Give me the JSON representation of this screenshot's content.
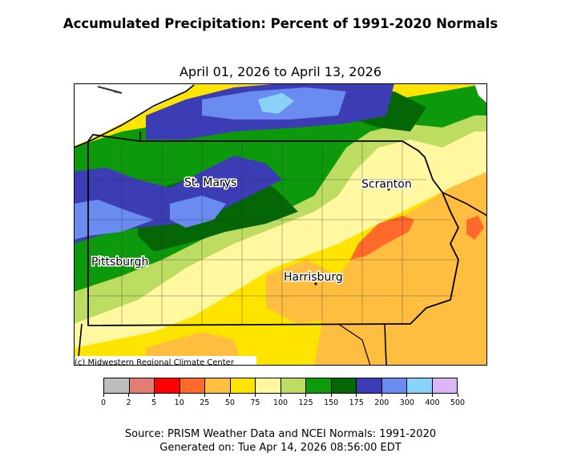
{
  "title": "Accumulated Precipitation: Percent of 1991-2020 Normals",
  "subtitle": "April 01, 2026 to April 13, 2026",
  "credit": "(c) Midwestern Regional Climate Center",
  "cities": [
    {
      "name": "St. Marys"
    },
    {
      "name": "Scranton"
    },
    {
      "name": "Pittsburgh"
    },
    {
      "name": "Harrisburg"
    }
  ],
  "legend": {
    "bins": [
      "0",
      "2",
      "5",
      "10",
      "25",
      "50",
      "75",
      "100",
      "125",
      "150",
      "175",
      "200",
      "300",
      "400",
      "500"
    ],
    "colors": [
      "#bdbdbd",
      "#e37d73",
      "#ff0000",
      "#ff6a2a",
      "#ffbe40",
      "#ffe400",
      "#fff8a0",
      "#bcdc62",
      "#0c9a0c",
      "#046604",
      "#3c3cb4",
      "#6a8cf0",
      "#8ad2fa",
      "#dcb4f8"
    ]
  },
  "footer": {
    "source": "Source: PRISM Weather Data and NCEI Normals: 1991-2020",
    "generated": "Generated on: Tue Apr 14, 2026 08:56:00 EDT"
  }
}
